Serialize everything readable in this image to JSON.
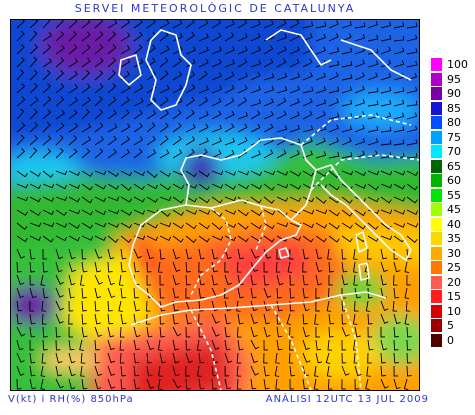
{
  "header": {
    "title": "SERVEI METEOROLÒGIC DE CATALUNYA"
  },
  "footer": {
    "variables": "V(kt) i RH(%) 850hPa",
    "analysis": "ANÀLISI 12UTC 13 JUL 2009"
  },
  "legend": [
    {
      "label": "100",
      "color": "#ff00ff"
    },
    {
      "label": "95",
      "color": "#b000c8"
    },
    {
      "label": "90",
      "color": "#7800a0"
    },
    {
      "label": "85",
      "color": "#1414d2"
    },
    {
      "label": "80",
      "color": "#0050ff"
    },
    {
      "label": "75",
      "color": "#00a0ff"
    },
    {
      "label": "70",
      "color": "#00e6ff"
    },
    {
      "label": "65",
      "color": "#006400"
    },
    {
      "label": "60",
      "color": "#00b400"
    },
    {
      "label": "55",
      "color": "#00e600"
    },
    {
      "label": "45",
      "color": "#a0ff00"
    },
    {
      "label": "40",
      "color": "#ffff00"
    },
    {
      "label": "35",
      "color": "#ffd700"
    },
    {
      "label": "30",
      "color": "#ffaa00"
    },
    {
      "label": "25",
      "color": "#ff7800"
    },
    {
      "label": "20",
      "color": "#ff5a50"
    },
    {
      "label": "15",
      "color": "#ff1e1e"
    },
    {
      "label": "10",
      "color": "#d20000"
    },
    {
      "label": "5",
      "color": "#9b0000"
    },
    {
      "label": "0",
      "color": "#500000"
    }
  ]
}
